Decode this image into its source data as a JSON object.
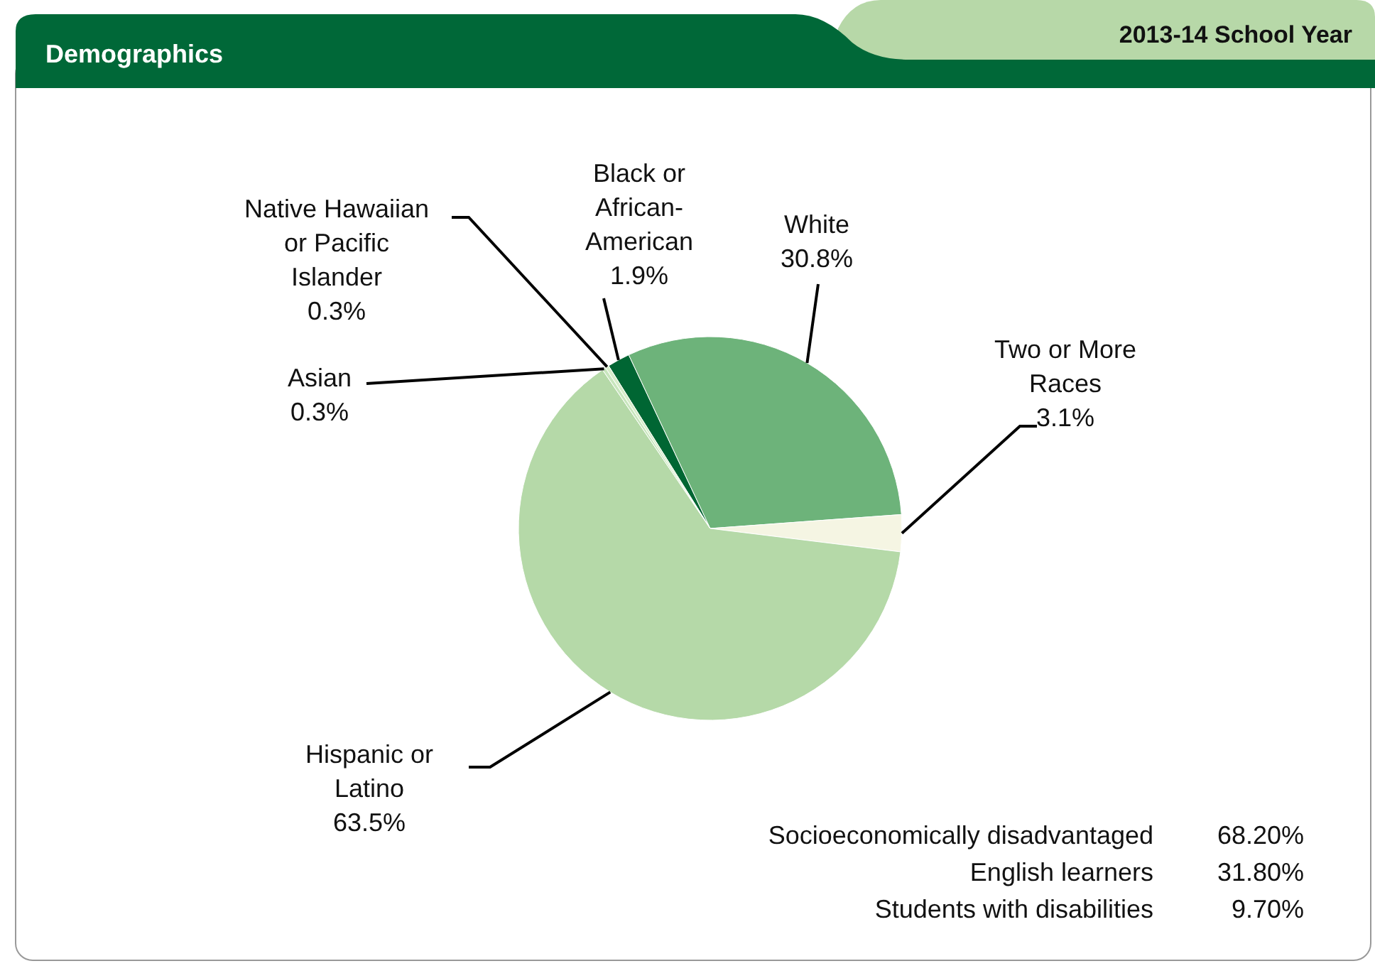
{
  "chart_data": {
    "type": "pie",
    "title": "Demographics",
    "subtitle": "2013-14 School Year",
    "categories": [
      "Black or African-American",
      "White",
      "Two or More Races",
      "Hispanic or Latino",
      "Asian",
      "Native Hawaiian or Pacific Islander"
    ],
    "values": [
      1.9,
      30.8,
      3.1,
      63.5,
      0.3,
      0.3
    ],
    "value_labels": [
      "1.9%",
      "30.8%",
      "3.1%",
      "63.5%",
      "0.3%",
      "0.3%"
    ],
    "colors": [
      "#006633",
      "#6db37a",
      "#f5f5e3",
      "#b5d9a8",
      "#c8e6bd",
      "#d6ecc9"
    ],
    "annotations": [
      "Socioeconomically disadvantaged 68.20%",
      "English learners 31.80%",
      "Students with disabilities 9.70%"
    ]
  }
}
